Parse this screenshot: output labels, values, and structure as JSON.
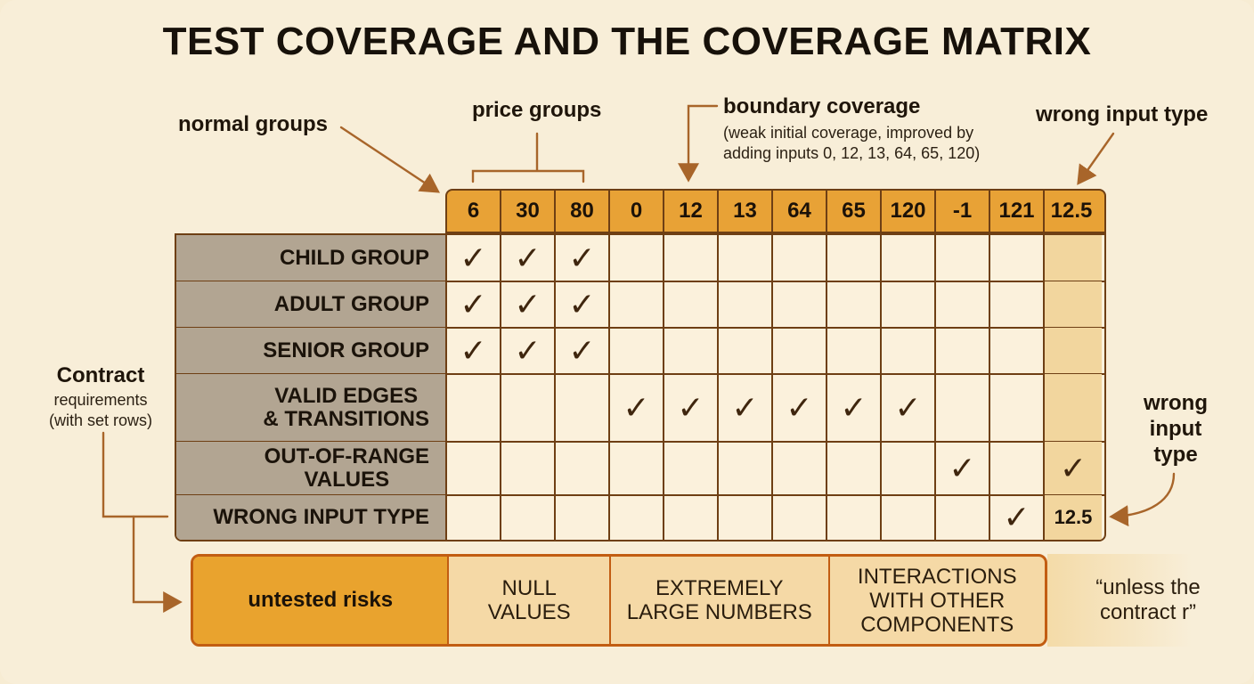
{
  "title": "TEST COVERAGE AND THE COVERAGE MATRIX",
  "annotations": {
    "normal_groups": "normal groups",
    "price_groups": "price groups",
    "boundary_title": "boundary coverage",
    "boundary_note_1": "(weak initial coverage, improved by",
    "boundary_note_2": "adding inputs 0, 12, 13, 64, 65, 120)",
    "wrong_input_top": "wrong input type",
    "wrong_input_side": [
      "wrong",
      "input",
      "type"
    ],
    "contract_title": "Contract",
    "contract_sub_1": "requirements",
    "contract_sub_2": "(with set rows)"
  },
  "matrix": {
    "columns": [
      "6",
      "30",
      "80",
      "0",
      "12",
      "13",
      "64",
      "65",
      "120",
      "-1",
      "121",
      "12.5"
    ],
    "rows": [
      {
        "label_lines": [
          "CHILD GROUP"
        ],
        "checks": [
          0,
          1,
          2
        ]
      },
      {
        "label_lines": [
          "ADULT GROUP"
        ],
        "checks": [
          0,
          1,
          2
        ]
      },
      {
        "label_lines": [
          "SENIOR GROUP"
        ],
        "checks": [
          0,
          1,
          2
        ]
      },
      {
        "label_lines": [
          "VALID EDGES",
          "& TRANSITIONS"
        ],
        "checks": [
          3,
          4,
          5,
          6,
          7,
          8
        ]
      },
      {
        "label_lines": [
          "OUT-OF-RANGE",
          "VALUES"
        ],
        "checks": [
          9,
          11
        ]
      },
      {
        "label_lines": [
          "WRONG INPUT TYPE"
        ],
        "checks": [
          10
        ],
        "text_cells": {
          "11": "12.5"
        }
      }
    ],
    "check_symbol": "✓"
  },
  "risks": {
    "label": "untested risks",
    "items": [
      {
        "lines": [
          "NULL",
          "VALUES"
        ]
      },
      {
        "lines": [
          "EXTREMELY",
          "LARGE NUMBERS"
        ]
      },
      {
        "lines": [
          "INTERACTIONS",
          "WITH OTHER",
          "COMPONENTS"
        ]
      }
    ],
    "trailing_quote_1": "“unless the",
    "trailing_quote_2": "contract r”"
  },
  "colors": {
    "header_fill": "#e8a236",
    "label_fill": "#b2a592",
    "line": "#6e3f14",
    "arrow": "#a8652a",
    "risk_border": "#c25d12"
  }
}
